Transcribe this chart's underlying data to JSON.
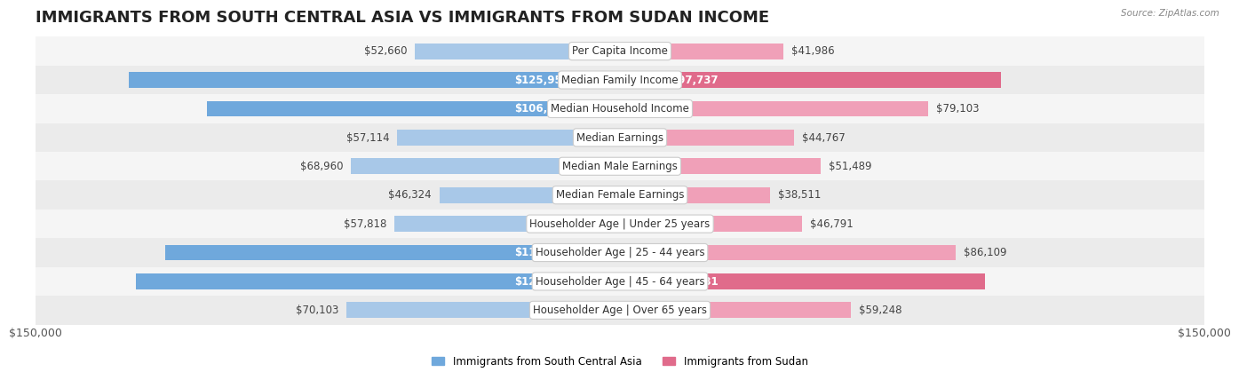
{
  "title": "IMMIGRANTS FROM SOUTH CENTRAL ASIA VS IMMIGRANTS FROM SUDAN INCOME",
  "source": "Source: ZipAtlas.com",
  "categories": [
    "Per Capita Income",
    "Median Family Income",
    "Median Household Income",
    "Median Earnings",
    "Median Male Earnings",
    "Median Female Earnings",
    "Householder Age | Under 25 years",
    "Householder Age | 25 - 44 years",
    "Householder Age | 45 - 64 years",
    "Householder Age | Over 65 years"
  ],
  "left_values": [
    52660,
    125956,
    106057,
    57114,
    68960,
    46324,
    57818,
    116626,
    124188,
    70103
  ],
  "right_values": [
    41986,
    97737,
    79103,
    44767,
    51489,
    38511,
    46791,
    86109,
    93781,
    59248
  ],
  "left_labels": [
    "$52,660",
    "$125,956",
    "$106,057",
    "$57,114",
    "$68,960",
    "$46,324",
    "$57,818",
    "$116,626",
    "$124,188",
    "$70,103"
  ],
  "right_labels": [
    "$41,986",
    "$97,737",
    "$79,103",
    "$44,767",
    "$51,489",
    "$38,511",
    "$46,791",
    "$86,109",
    "$93,781",
    "$59,248"
  ],
  "left_color_dark": "#6fa8dc",
  "left_color_light": "#a8c8e8",
  "right_color_dark": "#e06b8b",
  "right_color_light": "#f0a0b8",
  "max_value": 150000,
  "left_legend": "Immigrants from South Central Asia",
  "right_legend": "Immigrants from Sudan",
  "background_color": "#ffffff",
  "row_bg_color": "#f0f0f0",
  "title_fontsize": 13,
  "label_fontsize": 8.5,
  "axis_label_fontsize": 9,
  "threshold_dark": 90000
}
